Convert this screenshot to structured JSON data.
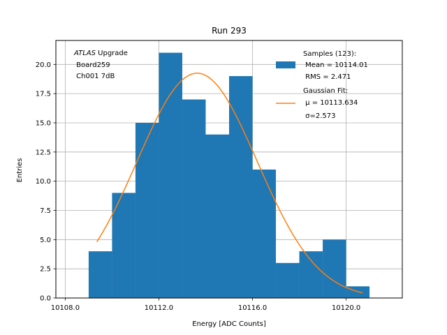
{
  "chart_data": {
    "type": "bar",
    "title": "Run 293",
    "xlabel": "Energy [ADC Counts]",
    "ylabel": "Entries",
    "xlim": [
      10107.6,
      10122.4
    ],
    "ylim": [
      0,
      22.05
    ],
    "xticks": [
      10108.0,
      10112.0,
      10116.0,
      10120.0
    ],
    "xtick_labels": [
      "10108.0",
      "10112.0",
      "10116.0",
      "10120.0"
    ],
    "yticks": [
      0,
      2.5,
      5,
      7.5,
      10,
      12.5,
      15,
      17.5,
      20
    ],
    "ytick_labels": [
      "0.0",
      "2.5",
      "5.0",
      "7.5",
      "10.0",
      "12.5",
      "15.0",
      "17.5",
      "20.0"
    ],
    "grid": true,
    "histogram": {
      "name": "Samples (123):",
      "color": "#1f77b4",
      "bins": [
        {
          "x0": 10109.0,
          "x1": 10110.0,
          "count": 4
        },
        {
          "x0": 10110.0,
          "x1": 10111.0,
          "count": 9
        },
        {
          "x0": 10111.0,
          "x1": 10112.0,
          "count": 15
        },
        {
          "x0": 10112.0,
          "x1": 10113.0,
          "count": 21
        },
        {
          "x0": 10113.0,
          "x1": 10114.0,
          "count": 17
        },
        {
          "x0": 10114.0,
          "x1": 10115.0,
          "count": 14
        },
        {
          "x0": 10115.0,
          "x1": 10116.0,
          "count": 19
        },
        {
          "x0": 10116.0,
          "x1": 10117.0,
          "count": 11
        },
        {
          "x0": 10117.0,
          "x1": 10118.0,
          "count": 3
        },
        {
          "x0": 10118.0,
          "x1": 10119.0,
          "count": 4
        },
        {
          "x0": 10119.0,
          "x1": 10120.0,
          "count": 5
        },
        {
          "x0": 10120.0,
          "x1": 10121.0,
          "count": 1
        }
      ]
    },
    "fit": {
      "name": "Gaussian Fit:",
      "color": "#ff7f0e",
      "function": "gaussian",
      "amplitude": 19.25,
      "mu": 10113.634,
      "sigma": 2.573,
      "x_range": [
        10109.35,
        10120.7
      ]
    },
    "legend": {
      "placement": "top-right",
      "samples_lines": [
        "Samples (123):",
        " Mean = 10114.01",
        " RMS = 2.471"
      ],
      "fit_lines": [
        "Gaussian Fit:",
        " μ = 10113.634",
        " σ=2.573"
      ]
    },
    "annotation": {
      "italic_word": "ATLAS",
      "rest_of_first_line": " Upgrade",
      "lines": [
        " Board259",
        " Ch001 7dB"
      ]
    }
  }
}
